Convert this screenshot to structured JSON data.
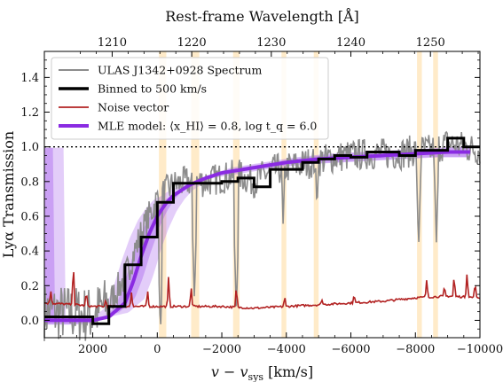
{
  "chart_data": {
    "type": "line",
    "xlabel_bottom": "v − v",
    "xlabel_bottom_sub": "sys",
    "xlabel_bottom_unit": " [km/s]",
    "xlabel_top": "Rest-frame Wavelength [Å]",
    "ylabel": "Lyα Transmission",
    "xlim": [
      3500,
      -10000
    ],
    "ylim": [
      -0.1,
      1.55
    ],
    "x_axis_reversed": true,
    "grid": false,
    "legend_placement": "top-left",
    "x_ticks": [
      2000,
      0,
      -2000,
      -4000,
      -6000,
      -8000,
      -10000
    ],
    "x_tick_labels": [
      "2000",
      "0",
      "−2000",
      "−4000",
      "−6000",
      "−8000",
      "−10000"
    ],
    "y_ticks": [
      0.0,
      0.2,
      0.4,
      0.6,
      0.8,
      1.0,
      1.2,
      1.4
    ],
    "y_tick_labels": [
      "0.0",
      "0.2",
      "0.4",
      "0.6",
      "0.8",
      "1.0",
      "1.2",
      "1.4"
    ],
    "top_ticks_wavelength": [
      1210,
      1220,
      1230,
      1240,
      1250
    ],
    "top_tick_labels": [
      "1210",
      "1220",
      "1230",
      "1240",
      "1250"
    ],
    "lya_rest_wavelength": 1215.67,
    "reference_line_y": 1.0,
    "shaded_bands_kms": [
      [
        -50,
        -280
      ],
      [
        -1050,
        -1300
      ],
      [
        -2350,
        -2550
      ],
      [
        -3850,
        -4000
      ],
      [
        -4850,
        -5000
      ],
      [
        -8050,
        -8200
      ],
      [
        -8550,
        -8700
      ]
    ],
    "legend": [
      "ULAS J1342+0928 Spectrum",
      "Binned to 500 km/s",
      "Noise vector",
      "MLE model: ⟨x_HI⟩ = 0.8, log t_q = 6.0"
    ],
    "series": [
      {
        "name": "Binned to 500 km/s",
        "style": "step",
        "x": [
          3500,
          2000,
          1500,
          1000,
          500,
          0,
          -500,
          -1000,
          -1500,
          -2000,
          -2500,
          -3000,
          -3500,
          -4000,
          -4500,
          -5000,
          -5500,
          -6000,
          -6500,
          -7000,
          -7500,
          -8000,
          -8500,
          -9000,
          -9500,
          -10000
        ],
        "y": [
          0.02,
          -0.02,
          0.08,
          0.32,
          0.48,
          0.68,
          0.79,
          0.79,
          0.79,
          0.8,
          0.82,
          0.77,
          0.87,
          0.87,
          0.91,
          0.93,
          0.95,
          0.94,
          0.97,
          0.97,
          0.95,
          0.98,
          0.98,
          1.05,
          1.0,
          1.0
        ]
      },
      {
        "name": "MLE model: ⟨x_HI⟩ = 0.8, log t_q = 6.0",
        "style": "curve",
        "x": [
          3500,
          2500,
          2000,
          1500,
          1000,
          750,
          500,
          250,
          0,
          -250,
          -500,
          -1000,
          -1500,
          -2000,
          -3000,
          -4000,
          -5000,
          -6000,
          -7000,
          -8000,
          -9000,
          -9700
        ],
        "y": [
          0.0,
          0.0,
          0.0,
          0.02,
          0.1,
          0.22,
          0.37,
          0.5,
          0.6,
          0.67,
          0.72,
          0.78,
          0.82,
          0.85,
          0.88,
          0.91,
          0.93,
          0.94,
          0.95,
          0.96,
          0.97,
          0.97
        ],
        "band_width": 0.06
      },
      {
        "name": "Noise vector",
        "style": "line",
        "x": [
          3500,
          2500,
          2000,
          1500,
          1000,
          500,
          0,
          -1000,
          -2000,
          -3000,
          -4000,
          -5000,
          -6000,
          -7000,
          -8000,
          -9000,
          -10000
        ],
        "y": [
          0.1,
          0.09,
          0.08,
          0.08,
          0.08,
          0.08,
          0.08,
          0.08,
          0.08,
          0.07,
          0.08,
          0.09,
          0.1,
          0.11,
          0.13,
          0.14,
          0.13
        ],
        "spikes": [
          {
            "x": 3300,
            "y": 0.17
          },
          {
            "x": 2600,
            "y": 0.34
          },
          {
            "x": 2200,
            "y": 0.17
          },
          {
            "x": 1600,
            "y": 0.12
          },
          {
            "x": 800,
            "y": 0.16
          },
          {
            "x": 300,
            "y": 0.18
          },
          {
            "x": -350,
            "y": 0.26
          },
          {
            "x": -1050,
            "y": 0.2
          },
          {
            "x": -2450,
            "y": 0.2
          },
          {
            "x": -3950,
            "y": 0.14
          },
          {
            "x": -5100,
            "y": 0.12
          },
          {
            "x": -6100,
            "y": 0.15
          },
          {
            "x": -8350,
            "y": 0.24
          },
          {
            "x": -8900,
            "y": 0.2
          },
          {
            "x": -9200,
            "y": 0.26
          },
          {
            "x": -9600,
            "y": 0.28
          },
          {
            "x": -9850,
            "y": 0.22
          }
        ]
      },
      {
        "name": "ULAS J1342+0928 Spectrum",
        "style": "noisy",
        "x": [
          3500,
          2000,
          1500,
          1000,
          500,
          0,
          -500,
          -1000,
          -1500,
          -2000,
          -2500,
          -3000,
          -3500,
          -4000,
          -4500,
          -5000,
          -5500,
          -6000,
          -6500,
          -7000,
          -7500,
          -8000,
          -8500,
          -9000,
          -9500,
          -10000
        ],
        "y": [
          0.05,
          0.03,
          0.1,
          0.25,
          0.5,
          0.7,
          0.78,
          0.8,
          0.8,
          0.82,
          0.84,
          0.8,
          0.86,
          0.88,
          0.9,
          0.92,
          0.94,
          0.95,
          0.96,
          0.96,
          0.96,
          0.98,
          0.98,
          1.02,
          1.0,
          0.98
        ],
        "noise_amplitude": 0.17,
        "absorption_dips": [
          {
            "x": -100,
            "y": -0.08
          },
          {
            "x": -1150,
            "y": 0.12
          },
          {
            "x": -2450,
            "y": 0.05
          },
          {
            "x": -3900,
            "y": 0.55
          },
          {
            "x": -4950,
            "y": 0.62
          },
          {
            "x": -8100,
            "y": 0.42
          },
          {
            "x": -8650,
            "y": 0.45
          }
        ]
      }
    ]
  }
}
